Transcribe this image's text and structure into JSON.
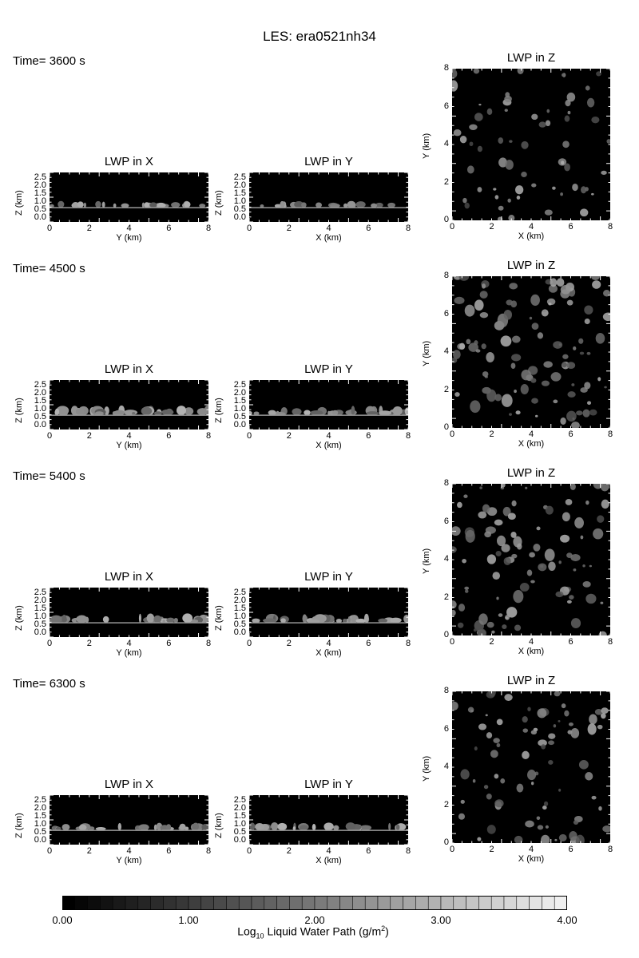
{
  "figure": {
    "title": "LES: era0521nh34"
  },
  "chart_data": {
    "type": "heatmap",
    "title": "LES: era0521nh34",
    "rows": [
      {
        "time_label": "Time= 3600 s",
        "cloud_activity": 0.5,
        "panels": [
          {
            "title": "LWP in X",
            "xlabel": "Y (km)",
            "ylabel": "Z (km)",
            "xlim": [
              0,
              8
            ],
            "ylim": [
              0,
              2.5
            ]
          },
          {
            "title": "LWP in Y",
            "xlabel": "X (km)",
            "ylabel": "Z (km)",
            "xlim": [
              0,
              8
            ],
            "ylim": [
              0,
              2.5
            ]
          },
          {
            "title": "LWP in Z",
            "xlabel": "X (km)",
            "ylabel": "Y (km)",
            "xlim": [
              0,
              8
            ],
            "ylim": [
              0,
              8
            ]
          }
        ]
      },
      {
        "time_label": "Time= 4500 s",
        "cloud_activity": 1.0,
        "panels": [
          {
            "title": "LWP in X",
            "xlabel": "Y (km)",
            "ylabel": "Z (km)",
            "xlim": [
              0,
              8
            ],
            "ylim": [
              0,
              2.5
            ]
          },
          {
            "title": "LWP in Y",
            "xlabel": "X (km)",
            "ylabel": "Z (km)",
            "xlim": [
              0,
              8
            ],
            "ylim": [
              0,
              2.5
            ]
          },
          {
            "title": "LWP in Z",
            "xlabel": "X (km)",
            "ylabel": "Y (km)",
            "xlim": [
              0,
              8
            ],
            "ylim": [
              0,
              8
            ]
          }
        ]
      },
      {
        "time_label": "Time= 5400 s",
        "cloud_activity": 0.9,
        "panels": [
          {
            "title": "LWP in X",
            "xlabel": "Y (km)",
            "ylabel": "Z (km)",
            "xlim": [
              0,
              8
            ],
            "ylim": [
              0,
              2.5
            ]
          },
          {
            "title": "LWP in Y",
            "xlabel": "X (km)",
            "ylabel": "Z (km)",
            "xlim": [
              0,
              8
            ],
            "ylim": [
              0,
              2.5
            ]
          },
          {
            "title": "LWP in Z",
            "xlabel": "X (km)",
            "ylabel": "Y (km)",
            "xlim": [
              0,
              8
            ],
            "ylim": [
              0,
              8
            ]
          }
        ]
      },
      {
        "time_label": "Time= 6300 s",
        "cloud_activity": 0.7,
        "panels": [
          {
            "title": "LWP in X",
            "xlabel": "Y (km)",
            "ylabel": "Z (km)",
            "xlim": [
              0,
              8
            ],
            "ylim": [
              0,
              2.5
            ]
          },
          {
            "title": "LWP in Y",
            "xlabel": "X (km)",
            "ylabel": "Z (km)",
            "xlim": [
              0,
              8
            ],
            "ylim": [
              0,
              2.5
            ]
          },
          {
            "title": "LWP in Z",
            "xlabel": "X (km)",
            "ylabel": "Y (km)",
            "xlim": [
              0,
              8
            ],
            "ylim": [
              0,
              8
            ]
          }
        ]
      }
    ],
    "x_ticks": [
      "0",
      "2",
      "4",
      "6",
      "8"
    ],
    "z_ticks": [
      "0.0",
      "0.5",
      "1.0",
      "1.5",
      "2.0",
      "2.5"
    ],
    "y_ticks_plan": [
      "0",
      "2",
      "4",
      "6",
      "8"
    ],
    "colorbar": {
      "colormap": "grayscale",
      "range": [
        0.0,
        4.0
      ],
      "levels": 40,
      "tick_labels": [
        "0.00",
        "1.00",
        "2.00",
        "3.00",
        "4.00"
      ],
      "label_prefix": "Log",
      "label_sub": "10",
      "label_mid": " Liquid Water Path (g/m",
      "label_sup": "2",
      "label_suffix": ")"
    }
  }
}
